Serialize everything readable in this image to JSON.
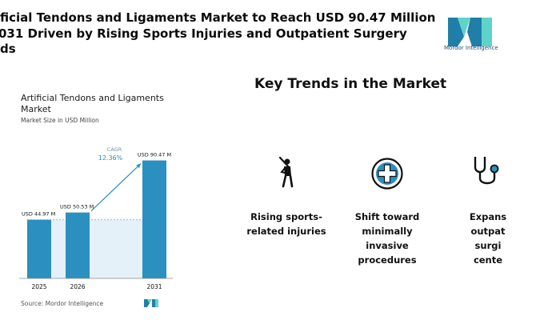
{
  "headline": {
    "line1": "ficial Tendons and Ligaments Market to Reach USD 90.47 Million",
    "line2": "031 Driven by Rising Sports Injuries and Outpatient Surgery",
    "line3": "ds"
  },
  "brand": {
    "logo_text": "Mordor Intelligence",
    "primary_color": "#1f7fa8",
    "accent_color": "#5fd3c9"
  },
  "chart": {
    "title": "Artificial Tendons and Ligaments Market",
    "subtitle": "Market Size in USD Million",
    "source": "Source: Mordor Intelligence"
  },
  "chart_data": {
    "type": "bar",
    "title": "Artificial Tendons and Ligaments Market",
    "ylabel": "Market Size in USD Million",
    "categories": [
      "2025",
      "2026",
      "2031"
    ],
    "values": [
      44.97,
      50.53,
      90.47
    ],
    "data_labels": [
      "USD 44.97 M",
      "USD 50.53 M",
      "USD 90.47 M"
    ],
    "annotation": {
      "label": "CAGR",
      "value": "12.36%"
    },
    "bar_color": "#2b8fc0",
    "ylim": [
      0,
      100
    ],
    "grid": false
  },
  "key_trends": {
    "title": "Key Trends in the Market",
    "items": [
      {
        "icon": "baseball-player-icon",
        "label_lines": [
          "Rising sports-",
          "related injuries"
        ]
      },
      {
        "icon": "medical-cross-icon",
        "label_lines": [
          "Shift toward",
          "minimally",
          "invasive",
          "procedures"
        ]
      },
      {
        "icon": "stethoscope-icon",
        "label_lines": [
          "Expans",
          "outpat",
          "surgi",
          "cente"
        ]
      }
    ]
  }
}
